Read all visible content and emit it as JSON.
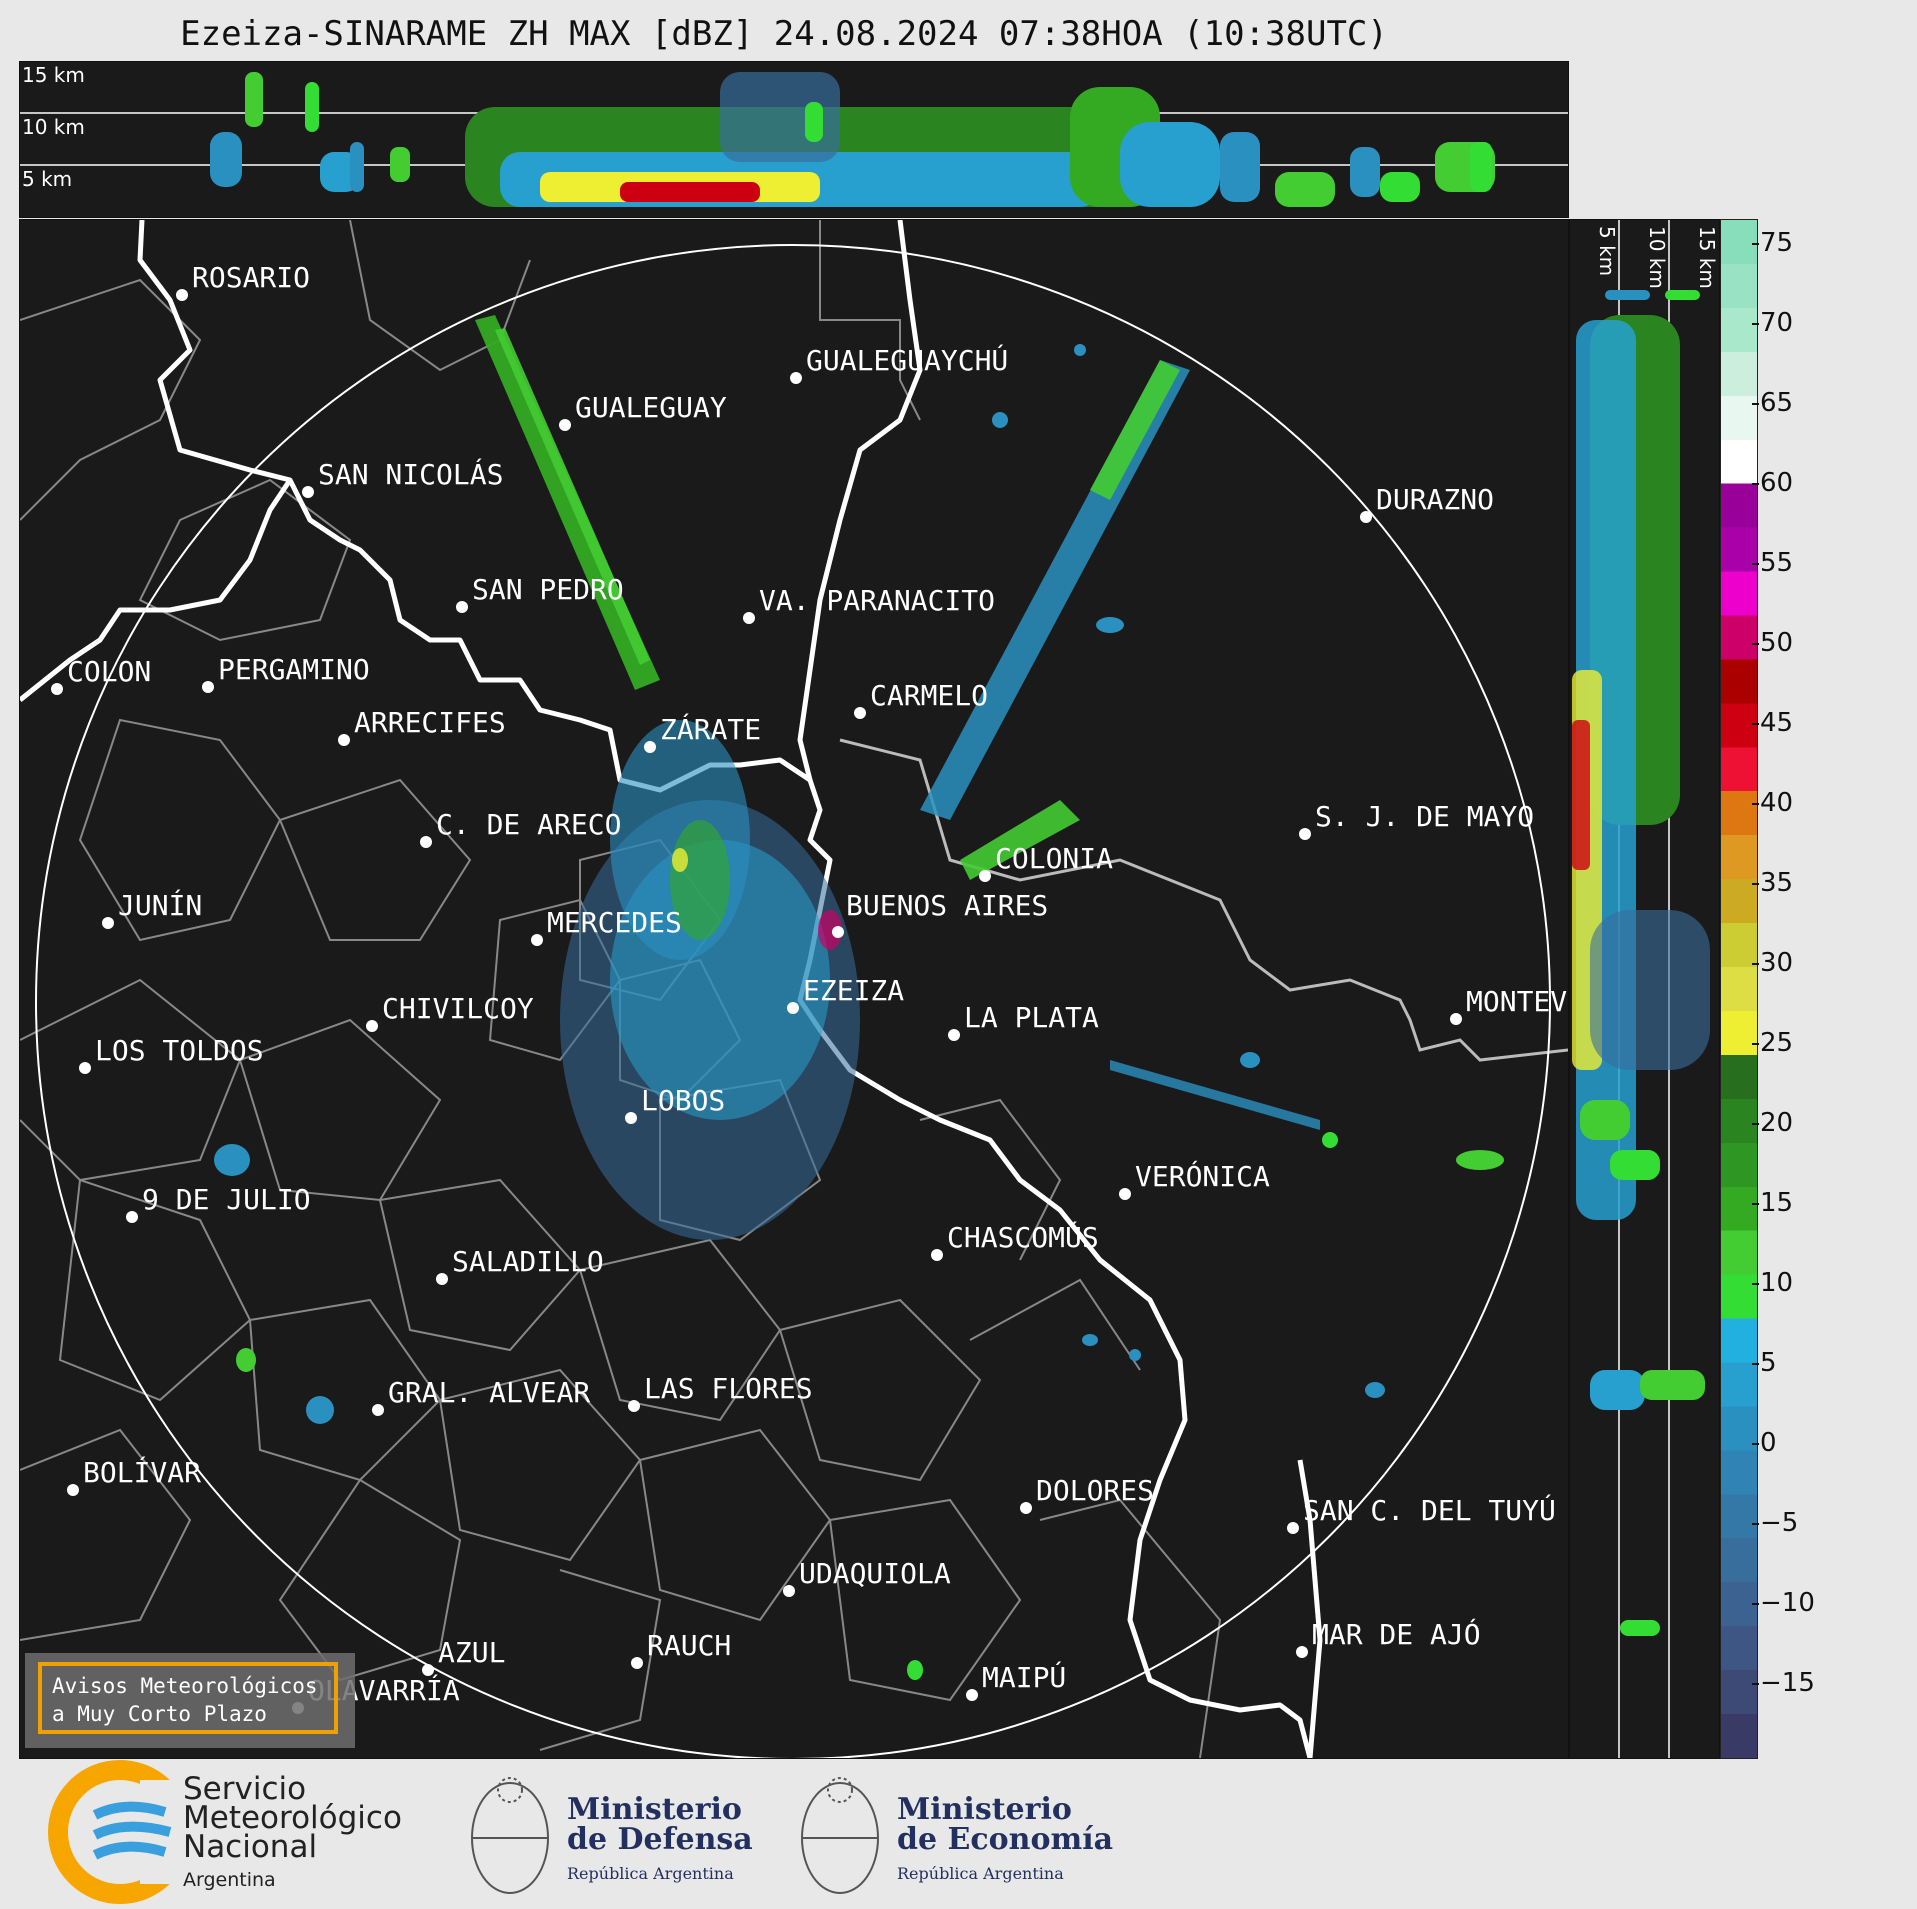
{
  "title": "Ezeiza-SINARAME ZH MAX [dBZ] 24.08.2024 07:38HOA (10:38UTC)",
  "top_panel": {
    "height_labels": [
      "15 km",
      "10 km",
      "5 km"
    ]
  },
  "side_panel": {
    "height_labels": [
      "5 km",
      "10 km",
      "15 km"
    ]
  },
  "map": {
    "cities": [
      {
        "name": "ROSARIO"
      },
      {
        "name": "GUALEGUAYCHÚ"
      },
      {
        "name": "GUALEGUAY"
      },
      {
        "name": "SAN NICOLÁS"
      },
      {
        "name": "DURAZNO"
      },
      {
        "name": "SAN PEDRO"
      },
      {
        "name": "VA. PARANACITO"
      },
      {
        "name": "COLON"
      },
      {
        "name": "PERGAMINO"
      },
      {
        "name": "CARMELO"
      },
      {
        "name": "ARRECIFES"
      },
      {
        "name": "ZÁRATE"
      },
      {
        "name": "S. J. DE MAYO"
      },
      {
        "name": "C. DE ARECO"
      },
      {
        "name": "COLONIA"
      },
      {
        "name": "JUNÍN"
      },
      {
        "name": "BUENOS AIRES"
      },
      {
        "name": "MERCEDES"
      },
      {
        "name": "MONTEVIDEO"
      },
      {
        "name": "EZEIZA"
      },
      {
        "name": "CHIVILCOY"
      },
      {
        "name": "LA PLATA"
      },
      {
        "name": "LOS TOLDOS"
      },
      {
        "name": "LOBOS"
      },
      {
        "name": "VERÓNICA"
      },
      {
        "name": "9 DE JULIO"
      },
      {
        "name": "CHASCOMÚS"
      },
      {
        "name": "SALADILLO"
      },
      {
        "name": "GRAL. ALVEAR"
      },
      {
        "name": "LAS FLORES"
      },
      {
        "name": "BOLÍVAR"
      },
      {
        "name": "DOLORES"
      },
      {
        "name": "SAN C. DEL TUYÚ"
      },
      {
        "name": "UDAQUIOLA"
      },
      {
        "name": "MAR DE AJÓ"
      },
      {
        "name": "AZUL"
      },
      {
        "name": "RAUCH"
      },
      {
        "name": "OLAVARRÍA"
      },
      {
        "name": "MAIPÚ"
      }
    ]
  },
  "colorbar": {
    "unit": "dBZ",
    "range": [
      -20,
      77
    ],
    "ticks": [
      "75",
      "70",
      "65",
      "60",
      "55",
      "50",
      "45",
      "40",
      "35",
      "30",
      "25",
      "20",
      "15",
      "10",
      "5",
      "0",
      "−5",
      "−10",
      "−15"
    ],
    "colors_low_to_high": [
      "#3a3a66",
      "#3d4a76",
      "#3e5684",
      "#3b6290",
      "#386e9c",
      "#3478a8",
      "#2f84b4",
      "#2a90c0",
      "#27a0d0",
      "#22b0e0",
      "#33dd33",
      "#44cc33",
      "#33aa22",
      "#2e9622",
      "#2a8420",
      "#276e1e",
      "#eeee33",
      "#dddd44",
      "#cccc33",
      "#ccaa22",
      "#dd9922",
      "#dd7711",
      "#ee1133",
      "#cc0011",
      "#aa0000",
      "#cc0066",
      "#ee00cc",
      "#aa00aa",
      "#990099",
      "#ffffff",
      "#e8f8f0",
      "#cceedd",
      "#aae8cc",
      "#99e2c4",
      "#88ddbb"
    ]
  },
  "warning_box": {
    "line1": "Avisos Meteorológicos",
    "line2": "a Muy Corto Plazo"
  },
  "logos": {
    "smn": {
      "line1": "Servicio",
      "line2": "Meteorológico",
      "line3": "Nacional",
      "line4": "Argentina"
    },
    "defensa": {
      "line1": "Ministerio",
      "line2": "de Defensa",
      "line3": "República Argentina"
    },
    "economia": {
      "line1": "Ministerio",
      "line2": "de Economía",
      "line3": "República Argentina"
    }
  },
  "colors": {
    "background": "#1a1a1a",
    "coast": "#ffffff",
    "borders": "#888888",
    "warning_border": "#f0a000"
  }
}
